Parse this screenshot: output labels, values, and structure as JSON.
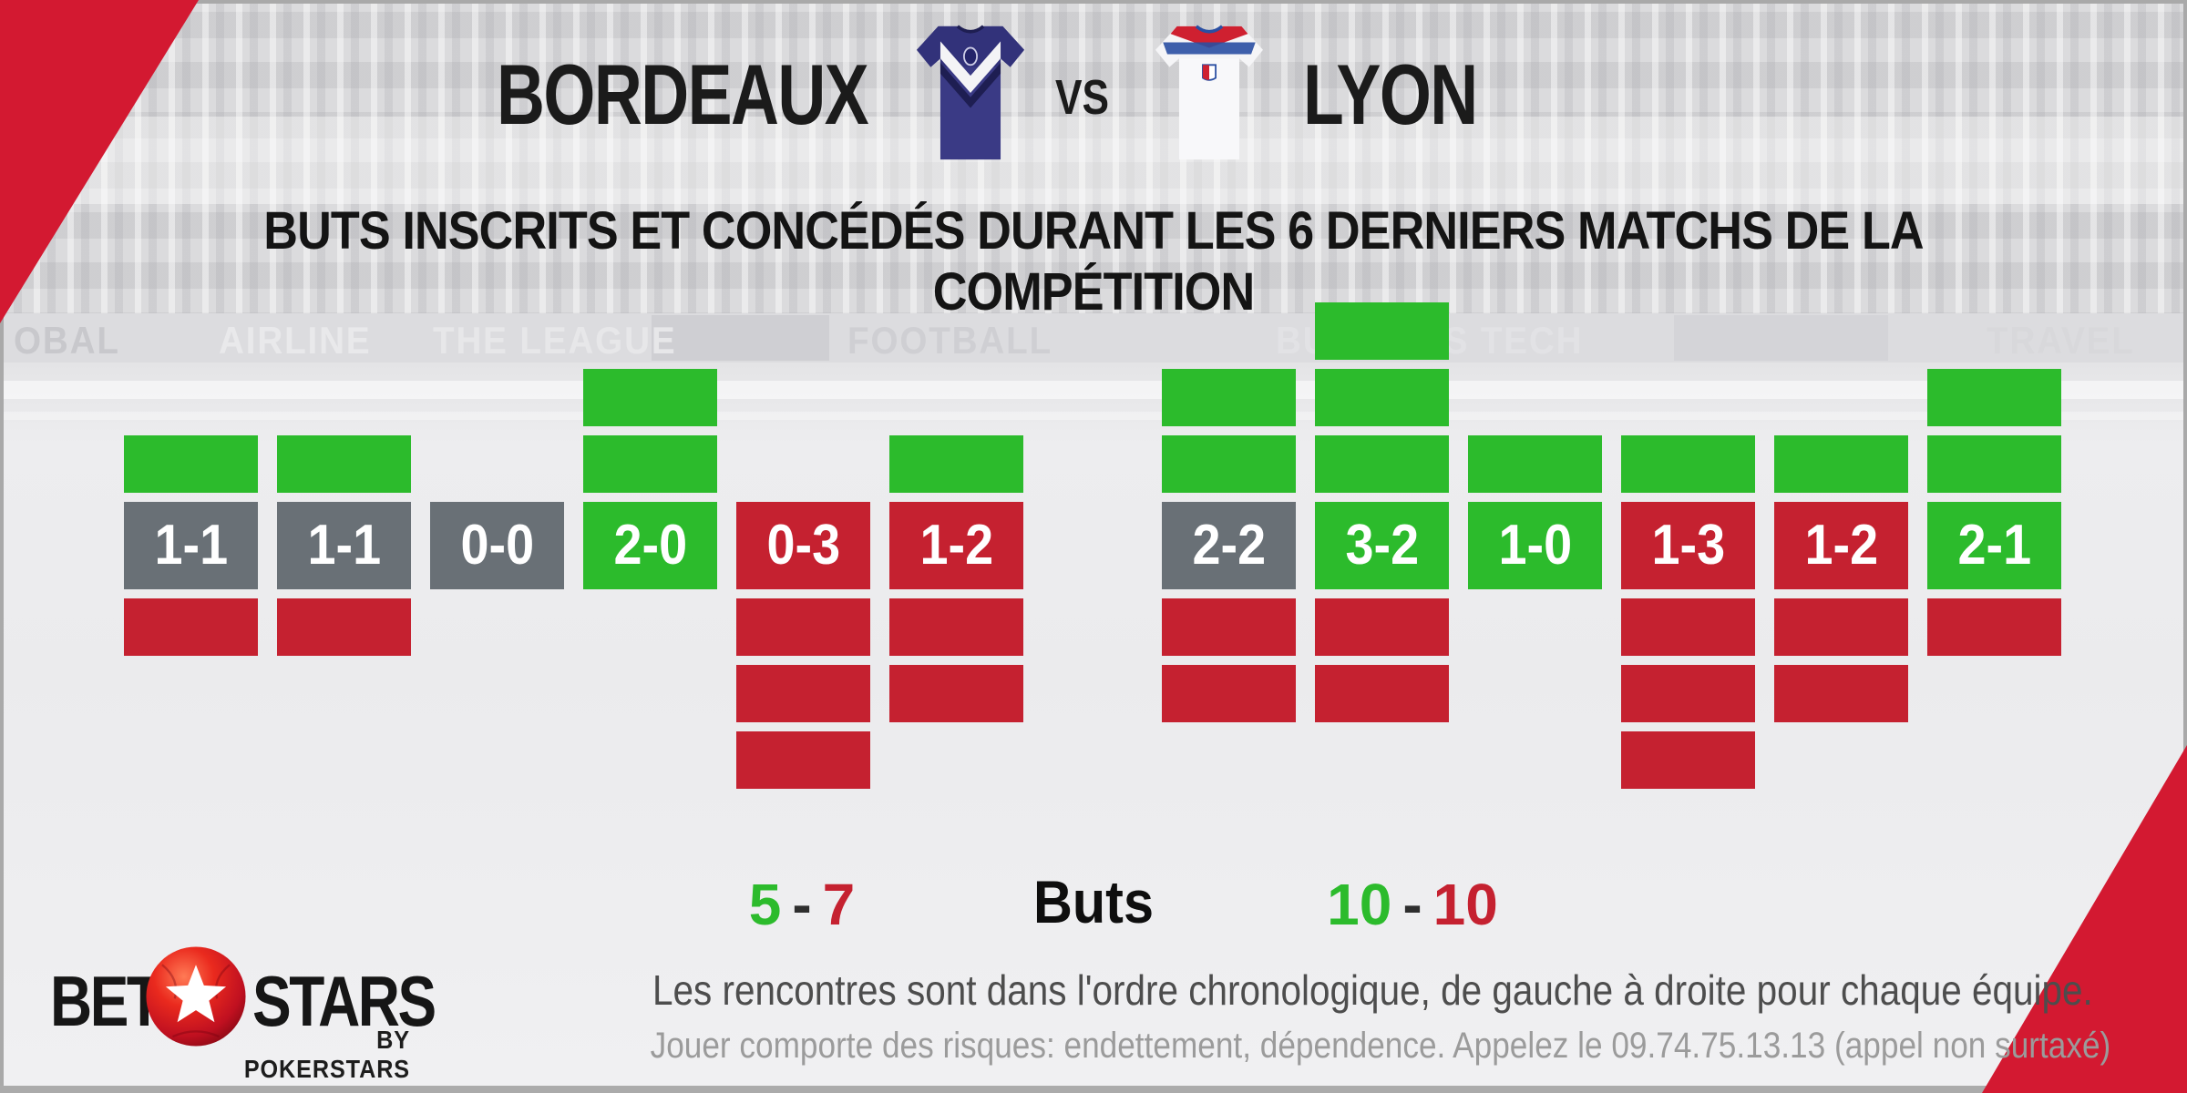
{
  "header": {
    "home_team": "BORDEAUX",
    "vs_label": "VS",
    "away_team": "LYON",
    "subtitle": "BUTS INSCRITS ET CONCÉDÉS DURANT LES 6 DERNIERS MATCHS DE LA COMPÉTITION"
  },
  "chart_data": {
    "type": "bar",
    "title": "Buts inscrits et concédés durant les 6 derniers matchs de la compétition",
    "groups": [
      {
        "team": "BORDEAUX",
        "matches": [
          {
            "score": "1-1",
            "result": "draw",
            "scored": 1,
            "conceded": 1
          },
          {
            "score": "1-1",
            "result": "draw",
            "scored": 1,
            "conceded": 1
          },
          {
            "score": "0-0",
            "result": "draw",
            "scored": 0,
            "conceded": 0
          },
          {
            "score": "2-0",
            "result": "win",
            "scored": 2,
            "conceded": 0
          },
          {
            "score": "0-3",
            "result": "loss",
            "scored": 0,
            "conceded": 3
          },
          {
            "score": "1-2",
            "result": "loss",
            "scored": 1,
            "conceded": 2
          }
        ]
      },
      {
        "team": "LYON",
        "matches": [
          {
            "score": "2-2",
            "result": "draw",
            "scored": 2,
            "conceded": 2
          },
          {
            "score": "3-2",
            "result": "win",
            "scored": 3,
            "conceded": 2
          },
          {
            "score": "1-0",
            "result": "win",
            "scored": 1,
            "conceded": 0
          },
          {
            "score": "1-3",
            "result": "loss",
            "scored": 1,
            "conceded": 3
          },
          {
            "score": "1-2",
            "result": "loss",
            "scored": 1,
            "conceded": 2
          },
          {
            "score": "2-1",
            "result": "win",
            "scored": 2,
            "conceded": 1
          }
        ]
      }
    ],
    "totals": {
      "home": {
        "scored": "5",
        "conceded": "7"
      },
      "away": {
        "scored": "10",
        "conceded": "10"
      },
      "separator": "-"
    },
    "totals_label": "Buts",
    "colors": {
      "scored": "#2CBB2C",
      "conceded": "#C52130",
      "win": "#2CBB2C",
      "draw": "#697076",
      "loss": "#C52130",
      "accent_red": "#D31931"
    }
  },
  "background": {
    "watermarks": [
      "OBAL",
      "AIRLINE",
      "THE LEAGUE",
      "FOOTBALL",
      "BUSINESS TECH",
      "TRAVEL"
    ]
  },
  "footer": {
    "logo_bet": "BET",
    "logo_stars": "STARS",
    "logo_byline": "BY POKERSTARS",
    "note": "Les rencontres sont dans l'ordre chronologique, de gauche à droite pour chaque équipe.",
    "disclaimer": "Jouer comporte des risques: endettement, dépendence. Appelez le 09.74.75.13.13 (appel non surtaxé)"
  }
}
